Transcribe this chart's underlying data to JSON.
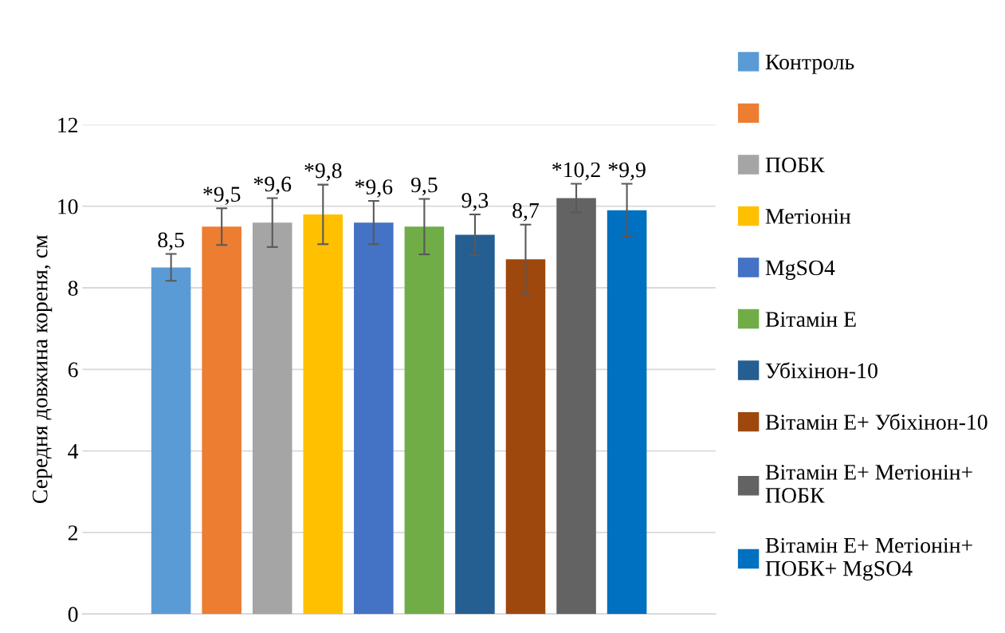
{
  "chart_data": {
    "type": "bar",
    "ylabel": "Середня довжина кореня, см",
    "categories": [
      null
    ],
    "series": [
      {
        "name": "Контроль",
        "color": "#5b9bd5",
        "values": [
          8.5
        ],
        "errors": [
          0.33
        ],
        "value_labels": [
          "8,5"
        ]
      },
      {
        "color": "#ed7d31",
        "values": [
          9.5
        ],
        "errors": [
          0.45
        ],
        "value_labels": [
          "*9,5"
        ]
      },
      {
        "name": "ПОБК",
        "color": "#a5a5a5",
        "values": [
          9.6
        ],
        "errors": [
          0.6
        ],
        "value_labels": [
          "*9,6"
        ]
      },
      {
        "name": "Метіонін",
        "color": "#ffc000",
        "values": [
          9.8
        ],
        "errors": [
          0.73
        ],
        "value_labels": [
          "*9,8"
        ]
      },
      {
        "name": "MgSO4",
        "color": "#4472c4",
        "values": [
          9.6
        ],
        "errors": [
          0.53
        ],
        "value_labels": [
          "*9,6"
        ]
      },
      {
        "name": "Вітамін Е",
        "color": "#70ad47",
        "values": [
          9.5
        ],
        "errors": [
          0.68
        ],
        "value_labels": [
          "9,5"
        ]
      },
      {
        "name": "Убіхінон-10",
        "color": "#255e91",
        "values": [
          9.3
        ],
        "errors": [
          0.5
        ],
        "value_labels": [
          "9,3"
        ]
      },
      {
        "name": "Вітамін Е+ Убіхінон-10",
        "color": "#9e480e",
        "values": [
          8.7
        ],
        "errors": [
          0.85
        ],
        "value_labels": [
          "8,7"
        ]
      },
      {
        "name": "Вітамін Е+ Метіонін+\nПОБК",
        "color": "#636363",
        "values": [
          10.2
        ],
        "errors": [
          0.35
        ],
        "value_labels": [
          "*10,2"
        ]
      },
      {
        "name": "Вітамін Е+ Метіонін+\nПОБК+ MgSO4",
        "color": "#0070c0",
        "values": [
          9.9
        ],
        "errors": [
          0.65
        ],
        "value_labels": [
          "*9,9"
        ]
      }
    ],
    "ylim": [
      0,
      12
    ],
    "yticks": [
      0,
      2,
      4,
      6,
      8,
      10,
      12
    ],
    "grid": "y",
    "legend": "right"
  }
}
